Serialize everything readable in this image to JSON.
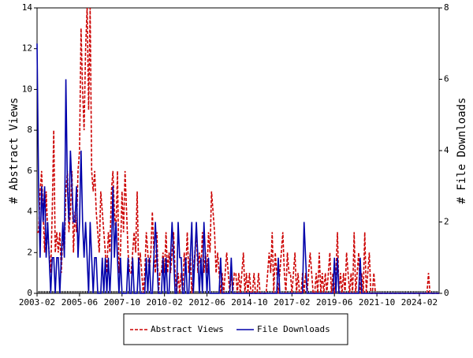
{
  "chart_data": {
    "type": "line",
    "ylabel": "# Abstract Views",
    "y2label": "# File Downloads",
    "categories": [
      "2003-02",
      "2003-03",
      "2003-04",
      "2003-05",
      "2003-06",
      "2003-07",
      "2003-08",
      "2003-09",
      "2003-10",
      "2003-11",
      "2003-12",
      "2004-01",
      "2004-02",
      "2004-03",
      "2004-04",
      "2004-05",
      "2004-06",
      "2004-07",
      "2004-08",
      "2004-09",
      "2004-10",
      "2004-11",
      "2004-12",
      "2005-01",
      "2005-02",
      "2005-03",
      "2005-04",
      "2005-05",
      "2005-06",
      "2005-07",
      "2005-08",
      "2005-09",
      "2005-10",
      "2005-11",
      "2005-12",
      "2006-01",
      "2006-02",
      "2006-03",
      "2006-04",
      "2006-05",
      "2006-06",
      "2006-07",
      "2006-08",
      "2006-09",
      "2006-10",
      "2006-11",
      "2006-12",
      "2007-01",
      "2007-02",
      "2007-03",
      "2007-04",
      "2007-05",
      "2007-06",
      "2007-07",
      "2007-08",
      "2007-09",
      "2007-10",
      "2007-11",
      "2007-12",
      "2008-01",
      "2008-02",
      "2008-03",
      "2008-04",
      "2008-05",
      "2008-06",
      "2008-07",
      "2008-08",
      "2008-09",
      "2008-10",
      "2008-11",
      "2008-12",
      "2009-01",
      "2009-02",
      "2009-03",
      "2009-04",
      "2009-05",
      "2009-06",
      "2009-07",
      "2009-08",
      "2009-09",
      "2009-10",
      "2009-11",
      "2009-12",
      "2010-01",
      "2010-02",
      "2010-03",
      "2010-04",
      "2010-05",
      "2010-06",
      "2010-07",
      "2010-08",
      "2010-09",
      "2010-10",
      "2010-11",
      "2010-12",
      "2011-01",
      "2011-02",
      "2011-03",
      "2011-04",
      "2011-05",
      "2011-06",
      "2011-07",
      "2011-08",
      "2011-09",
      "2011-10",
      "2011-11",
      "2011-12",
      "2012-01",
      "2012-02",
      "2012-03",
      "2012-04",
      "2012-05",
      "2012-06",
      "2012-07",
      "2012-08",
      "2012-09",
      "2012-10",
      "2012-11",
      "2012-12",
      "2013-01",
      "2013-02",
      "2013-03",
      "2013-04",
      "2013-05",
      "2013-06",
      "2013-07",
      "2013-08",
      "2013-09",
      "2013-10",
      "2013-11",
      "2013-12",
      "2014-01",
      "2014-02",
      "2014-03",
      "2014-04",
      "2014-05",
      "2014-06",
      "2014-07",
      "2014-08",
      "2014-09",
      "2014-10",
      "2014-11",
      "2014-12",
      "2015-01",
      "2015-02",
      "2015-03",
      "2015-04",
      "2015-05",
      "2015-06",
      "2015-07",
      "2015-08",
      "2015-09",
      "2015-10",
      "2015-11",
      "2015-12",
      "2016-01",
      "2016-02",
      "2016-03",
      "2016-04",
      "2016-05",
      "2016-06",
      "2016-07",
      "2016-08",
      "2016-09",
      "2016-10",
      "2016-11",
      "2016-12",
      "2017-01",
      "2017-02",
      "2017-03",
      "2017-04",
      "2017-05",
      "2017-06",
      "2017-07",
      "2017-08",
      "2017-09",
      "2017-10",
      "2017-11",
      "2017-12",
      "2018-01",
      "2018-02",
      "2018-03",
      "2018-04",
      "2018-05",
      "2018-06",
      "2018-07",
      "2018-08",
      "2018-09",
      "2018-10",
      "2018-11",
      "2018-12",
      "2019-01",
      "2019-02",
      "2019-03",
      "2019-04",
      "2019-05",
      "2019-06",
      "2019-07",
      "2019-08",
      "2019-09",
      "2019-10",
      "2019-11",
      "2019-12",
      "2020-01",
      "2020-02",
      "2020-03",
      "2020-04",
      "2020-05",
      "2020-06",
      "2020-07",
      "2020-08",
      "2020-09",
      "2020-10",
      "2020-11",
      "2020-12",
      "2021-01",
      "2021-02",
      "2021-03",
      "2021-04",
      "2021-05",
      "2021-06",
      "2021-07",
      "2021-08",
      "2021-09",
      "2021-10",
      "2021-11",
      "2021-12",
      "2022-01",
      "2022-02",
      "2022-03",
      "2022-04",
      "2022-05",
      "2022-06",
      "2022-07",
      "2022-08",
      "2022-09",
      "2022-10",
      "2022-11",
      "2022-12",
      "2023-01",
      "2023-02",
      "2023-03",
      "2023-04",
      "2023-05",
      "2023-06",
      "2023-07",
      "2023-08",
      "2023-09",
      "2023-10",
      "2023-11",
      "2023-12",
      "2024-01",
      "2024-02",
      "2024-03",
      "2024-04",
      "2024-05",
      "2024-06",
      "2024-07",
      "2024-08",
      "2024-09",
      "2024-10",
      "2024-11",
      "2024-12",
      "2025-01",
      "2025-02",
      "2025-03"
    ],
    "xtick_every": 28,
    "series": [
      {
        "name": "Abstract Views",
        "color": "#cc0000",
        "dash": true,
        "values": [
          3,
          3,
          5,
          6,
          4,
          2,
          5,
          3,
          2,
          1,
          4,
          8,
          2,
          3,
          2,
          3,
          1,
          3,
          2,
          5,
          6,
          3,
          4,
          6,
          2,
          4,
          3,
          6,
          7,
          13,
          10,
          8,
          12,
          14,
          9,
          14,
          6,
          5,
          6,
          4,
          3,
          2,
          5,
          4,
          3,
          2,
          1,
          3,
          2,
          5,
          6,
          4,
          3,
          6,
          1,
          2,
          5,
          3,
          6,
          4,
          2,
          1,
          1,
          2,
          3,
          2,
          5,
          1,
          2,
          1,
          0,
          1,
          3,
          2,
          1,
          2,
          4,
          2,
          1,
          3,
          0,
          1,
          1,
          2,
          1,
          3,
          1,
          2,
          1,
          2,
          3,
          1,
          0,
          1,
          0,
          1,
          0,
          2,
          1,
          3,
          1,
          2,
          0,
          1,
          2,
          3,
          1,
          2,
          1,
          3,
          1,
          2,
          1,
          3,
          2,
          5,
          4,
          3,
          1,
          2,
          1,
          0,
          1,
          0,
          1,
          2,
          1,
          0,
          1,
          0,
          1,
          1,
          0,
          1,
          0,
          1,
          2,
          0,
          1,
          0,
          1,
          0,
          0,
          1,
          0,
          0,
          1,
          0,
          0,
          0,
          0,
          0,
          1,
          2,
          1,
          3,
          0,
          2,
          1,
          0,
          1,
          2,
          3,
          1,
          0,
          2,
          1,
          1,
          0,
          1,
          2,
          0,
          1,
          0,
          0,
          1,
          0,
          1,
          0,
          1,
          2,
          1,
          0,
          0,
          1,
          0,
          2,
          0,
          1,
          0,
          1,
          0,
          1,
          2,
          0,
          1,
          0,
          1,
          3,
          0,
          1,
          0,
          1,
          0,
          2,
          1,
          0,
          1,
          0,
          3,
          0,
          1,
          2,
          0,
          1,
          0,
          3,
          0,
          1,
          2,
          0,
          0,
          1,
          0,
          0,
          0,
          0,
          0,
          0,
          0,
          0,
          0,
          0,
          0,
          0,
          0,
          0,
          0,
          0,
          0,
          0,
          0,
          0,
          0,
          0,
          0,
          0,
          0,
          0,
          0,
          0,
          0,
          0,
          0,
          0,
          0,
          0,
          0,
          1,
          0,
          0,
          0,
          0,
          0,
          0,
          0
        ]
      },
      {
        "name": "File Downloads",
        "color": "#0000aa",
        "axis": "y2",
        "values": [
          7,
          3,
          1,
          3,
          2,
          3,
          1,
          2,
          1,
          0,
          1,
          1,
          0,
          1,
          1,
          0,
          1,
          2,
          1,
          6,
          3,
          2,
          4,
          3,
          2,
          2,
          3,
          1,
          2,
          4,
          2,
          1,
          2,
          1,
          0,
          2,
          1,
          0,
          1,
          1,
          0,
          0,
          0,
          1,
          0,
          1,
          0,
          1,
          0,
          1,
          3,
          1,
          2,
          1,
          0,
          1,
          0,
          0,
          0,
          0,
          1,
          0,
          0,
          1,
          0,
          0,
          0,
          1,
          0,
          0,
          0,
          0,
          1,
          0,
          1,
          0,
          0,
          1,
          2,
          1,
          0,
          0,
          0,
          1,
          0,
          1,
          0,
          0,
          1,
          2,
          1,
          0,
          0,
          2,
          1,
          1,
          0,
          0,
          1,
          0,
          0,
          1,
          2,
          0,
          1,
          2,
          1,
          0,
          1,
          0,
          2,
          1,
          0,
          1,
          0,
          0,
          0,
          0,
          0,
          0,
          0,
          1,
          0,
          0,
          0,
          0,
          0,
          0,
          1,
          0,
          0,
          0,
          0,
          0,
          0,
          0,
          0,
          0,
          0,
          0,
          0,
          0,
          0,
          0,
          0,
          0,
          0,
          0,
          0,
          0,
          0,
          0,
          0,
          0,
          0,
          0,
          0,
          0,
          0,
          1,
          0,
          0,
          0,
          0,
          0,
          0,
          0,
          0,
          0,
          0,
          0,
          0,
          0,
          0,
          0,
          0,
          2,
          1,
          0,
          0,
          0,
          0,
          0,
          0,
          0,
          0,
          0,
          0,
          0,
          0,
          0,
          0,
          0,
          0,
          0,
          0,
          1,
          0,
          1,
          0,
          0,
          0,
          0,
          0,
          0,
          0,
          0,
          0,
          0,
          0,
          0,
          0,
          0,
          1,
          0,
          0,
          0,
          0,
          0,
          0,
          0,
          0,
          0,
          0,
          0,
          0,
          0,
          0,
          0,
          0,
          0,
          0,
          0,
          0,
          0,
          0,
          0,
          0,
          0,
          0,
          0,
          0,
          0,
          0,
          0,
          0,
          0,
          0,
          0,
          0,
          0,
          0,
          0,
          0,
          0,
          0,
          0,
          0,
          0,
          0,
          0,
          0,
          0,
          0,
          0,
          0
        ]
      }
    ],
    "ylim": [
      0,
      14
    ],
    "yticks": [
      0,
      2,
      4,
      6,
      8,
      10,
      12,
      14
    ],
    "y2lim": [
      0,
      8
    ],
    "y2ticks": [
      0,
      2,
      4,
      6,
      8
    ]
  }
}
